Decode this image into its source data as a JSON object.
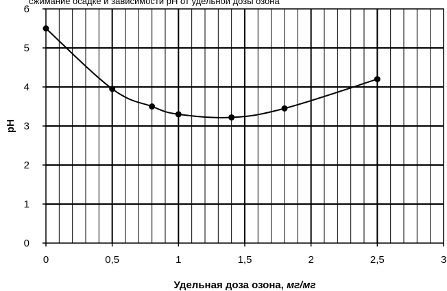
{
  "header_fragment": "сжимание осадке и зависимости рН от удельной дозы озона",
  "chart_data": {
    "type": "line",
    "title": "",
    "xlabel": "Удельная доза озона,",
    "xlabel_unit": "мг/мг",
    "ylabel": "pH",
    "xlim": [
      0,
      3
    ],
    "ylim": [
      0,
      6
    ],
    "x_ticks": [
      "0",
      "0,5",
      "1",
      "1,5",
      "2",
      "2,5",
      "3"
    ],
    "y_ticks": [
      "0",
      "1",
      "2",
      "3",
      "4",
      "5",
      "6"
    ],
    "x_major_step": 0.5,
    "x_minor_step": 0.1,
    "grid": true,
    "series": [
      {
        "marker": "circle",
        "color": "#000000",
        "points": [
          {
            "x": 0,
            "y": 5.5
          },
          {
            "x": 0.5,
            "y": 3.95
          },
          {
            "x": 0.8,
            "y": 3.5
          },
          {
            "x": 1.0,
            "y": 3.3
          },
          {
            "x": 1.4,
            "y": 3.22
          },
          {
            "x": 1.8,
            "y": 3.45
          },
          {
            "x": 2.5,
            "y": 4.2
          }
        ]
      }
    ]
  }
}
